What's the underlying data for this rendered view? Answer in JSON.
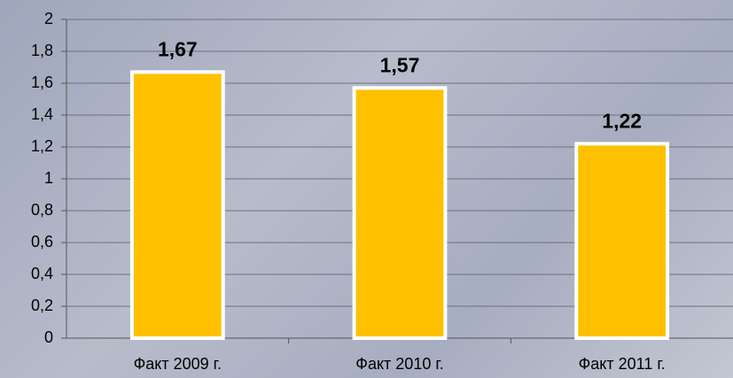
{
  "chart_data": {
    "type": "bar",
    "categories": [
      "Факт 2009 г.",
      "Факт 2010 г.",
      "Факт 2011 г."
    ],
    "values": [
      1.67,
      1.57,
      1.22
    ],
    "value_labels": [
      "1,67",
      "1,57",
      "1,22"
    ],
    "color": "#ffc000",
    "ylim": [
      0,
      2
    ],
    "yticks": [
      0,
      {
        "value": 0.2,
        "label": "0,2"
      },
      {
        "value": 0.4,
        "label": "0,4"
      },
      {
        "value": 0.6,
        "label": "0,6"
      },
      {
        "value": 0.8,
        "label": "0,8"
      },
      1,
      {
        "value": 1.2,
        "label": "1,2"
      },
      {
        "value": 1.4,
        "label": "1,4"
      },
      {
        "value": 1.6,
        "label": "1,6"
      },
      {
        "value": 1.8,
        "label": "1,8"
      },
      2
    ],
    "grid": true
  }
}
